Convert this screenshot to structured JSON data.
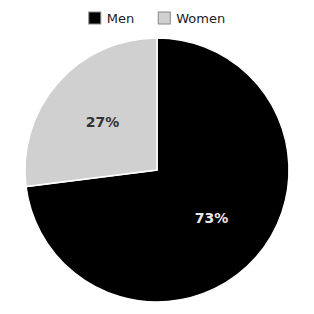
{
  "chart_data": {
    "type": "pie",
    "categories": [
      "Men",
      "Women"
    ],
    "values": [
      73,
      27
    ],
    "value_labels": [
      "73%",
      "27%"
    ],
    "colors": [
      "#000000",
      "#d0d0d0"
    ],
    "data_labels": true,
    "legend": "top"
  }
}
